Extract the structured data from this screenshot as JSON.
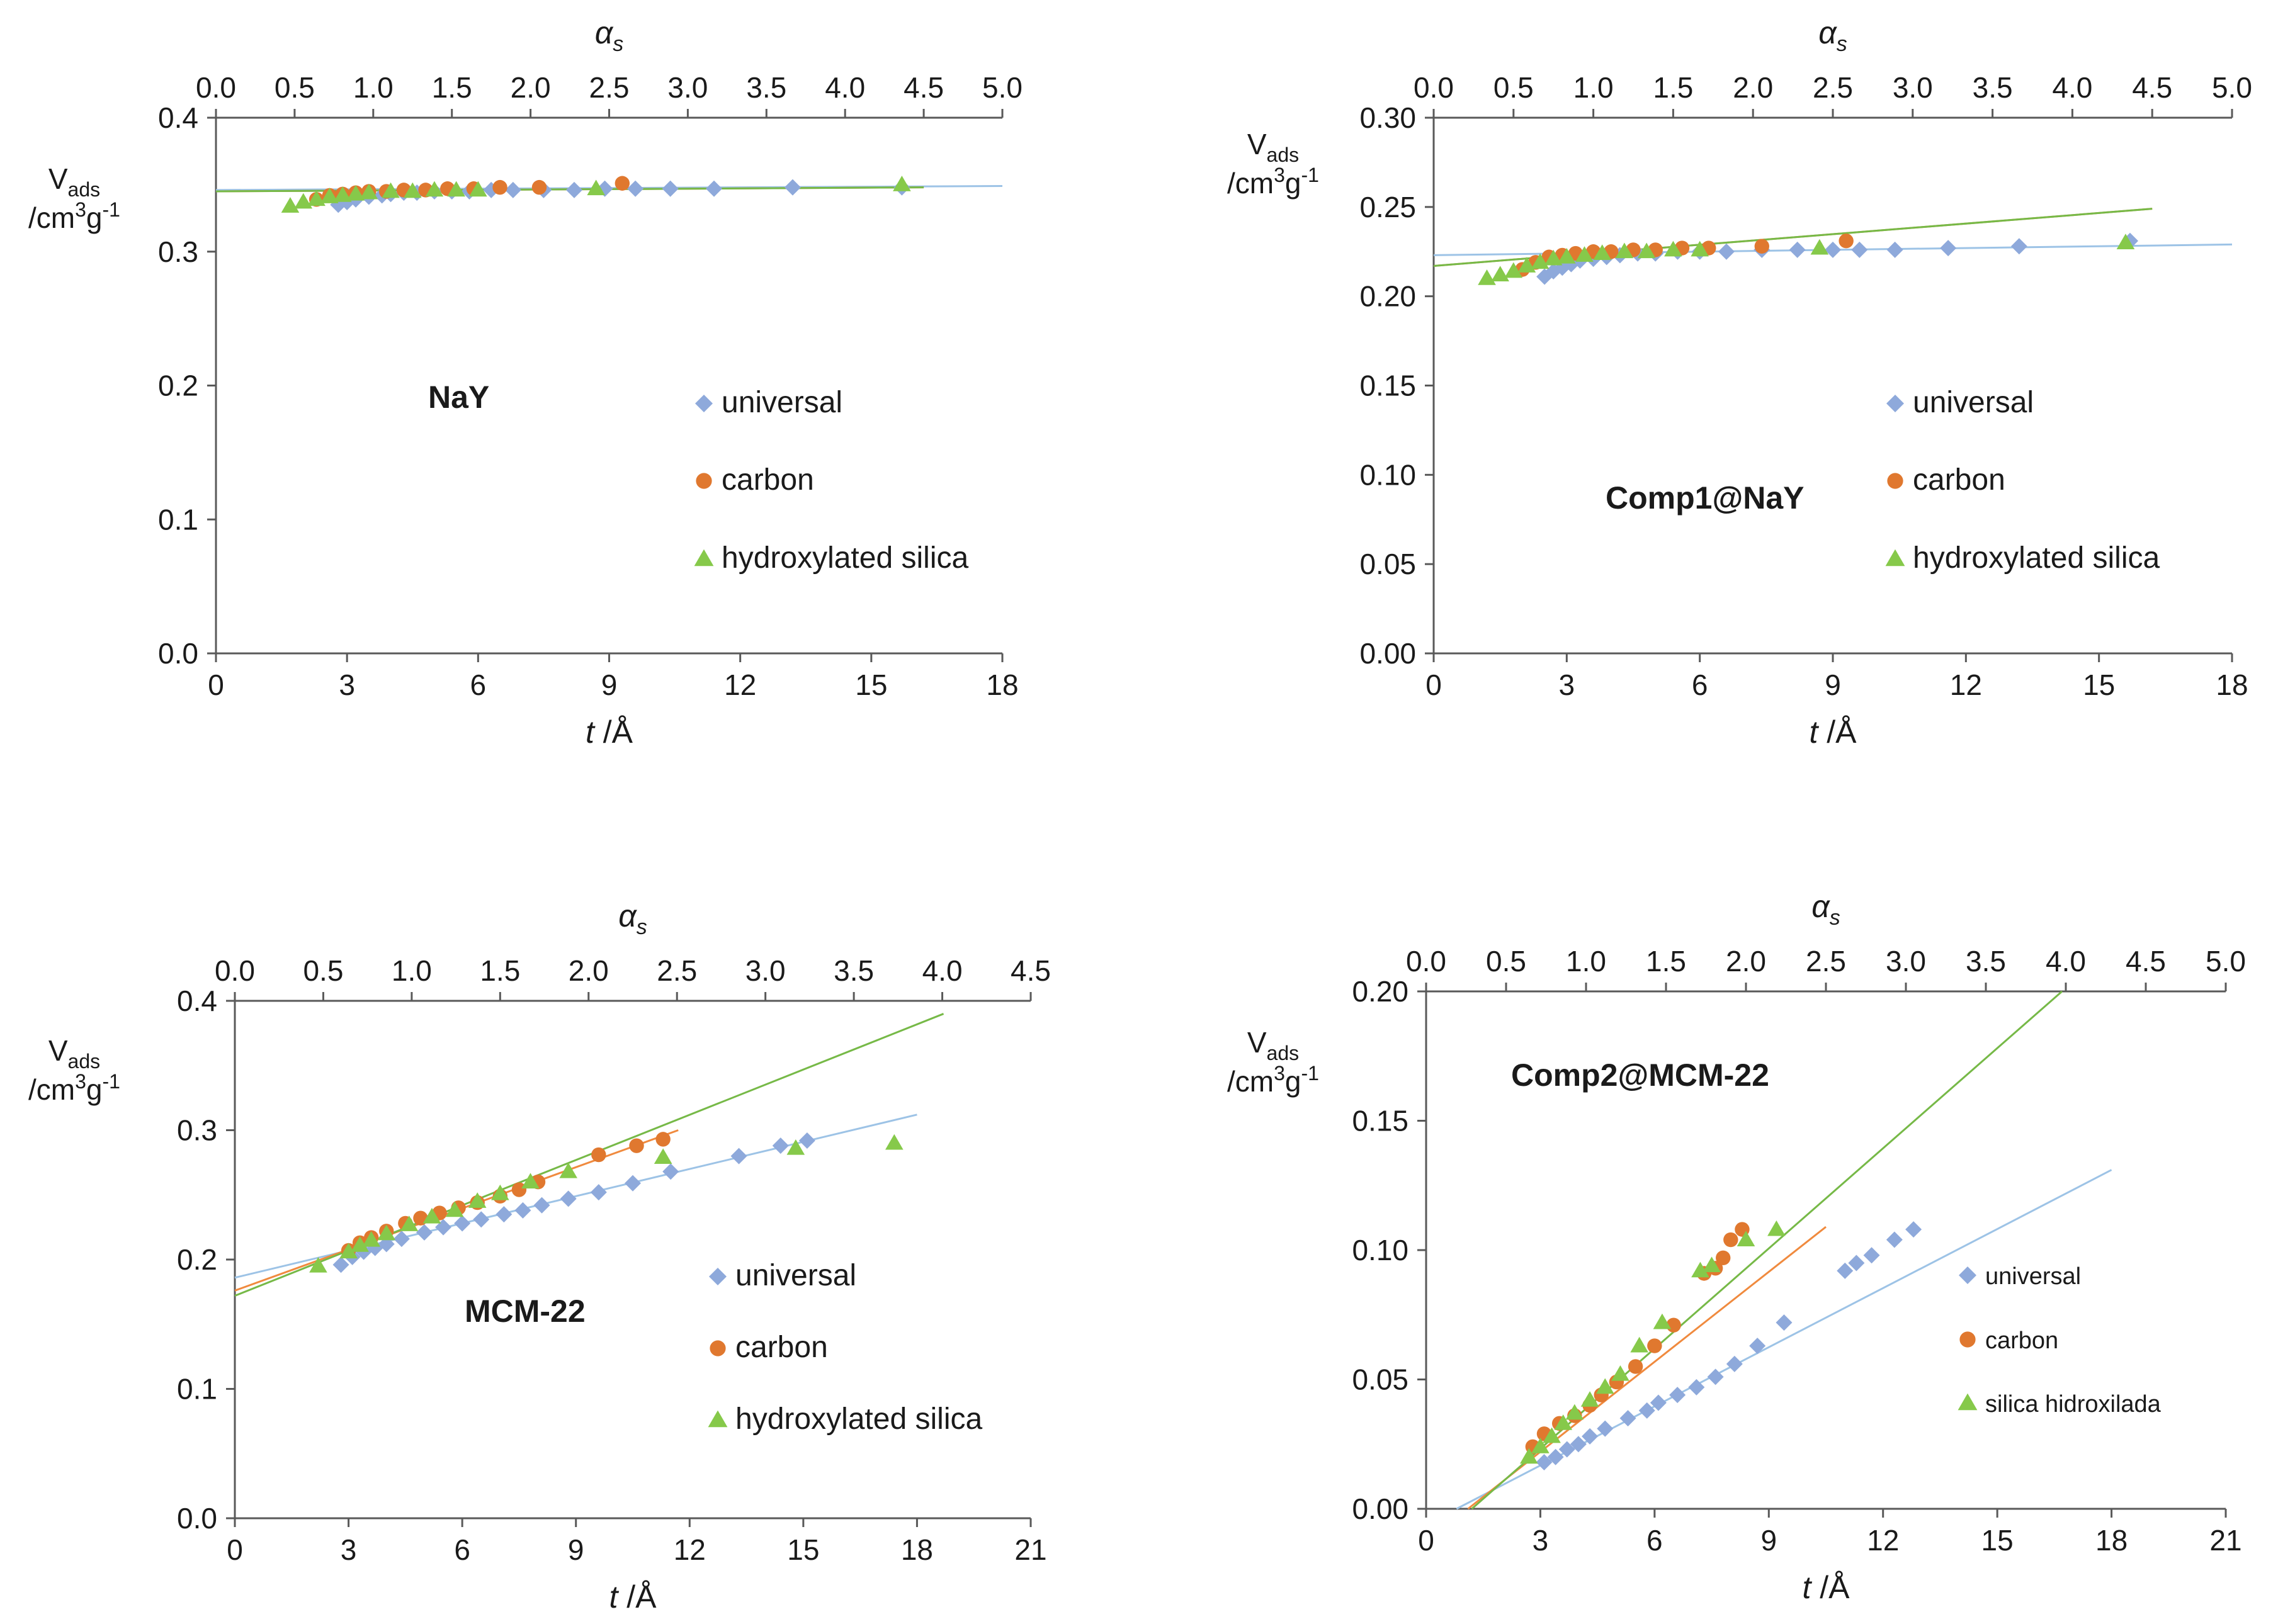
{
  "colors": {
    "universal": "#8ea9db",
    "carbon": "#e0782f",
    "silica": "#86c94a",
    "universal_line": "#9dc3e6",
    "carbon_line": "#f08a3e",
    "silica_line": "#76b947",
    "axis": "#595959"
  },
  "chart_data": [
    {
      "type": "scatter",
      "sample_label": "NaY",
      "ylabel": "V",
      "ylabel_sub": "ads",
      "ylabel_unit": "/cm",
      "ylabel_unit_sup1": "3",
      "ylabel_unit_mid": "g",
      "ylabel_unit_sup2": "-1",
      "xlabel": "t",
      "xlabel_unit": " /Å",
      "x2label": "α",
      "x2label_sub": "s",
      "xlim": [
        0,
        18
      ],
      "xticks": [
        "0",
        "3",
        "6",
        "9",
        "12",
        "15",
        "18"
      ],
      "ylim": [
        0,
        0.4
      ],
      "yticks": [
        "0.0",
        "0.1",
        "0.2",
        "0.3",
        "0.4"
      ],
      "x2lim": [
        0,
        5
      ],
      "x2ticks": [
        "0.0",
        "0.5",
        "1.0",
        "1.5",
        "2.0",
        "2.5",
        "3.0",
        "3.5",
        "4.0",
        "4.5",
        "5.0"
      ],
      "legend": [
        "universal",
        "carbon",
        "hydroxylated silica"
      ],
      "series": [
        {
          "name": "universal",
          "marker": "diamond",
          "x": [
            2.8,
            3.0,
            3.2,
            3.5,
            3.8,
            4.0,
            4.3,
            4.6,
            5.0,
            5.4,
            5.8,
            6.3,
            6.8,
            7.5,
            8.2,
            8.9,
            9.6,
            10.4,
            11.4,
            13.2,
            15.7
          ],
          "y": [
            0.335,
            0.337,
            0.339,
            0.341,
            0.342,
            0.343,
            0.344,
            0.344,
            0.345,
            0.345,
            0.345,
            0.346,
            0.346,
            0.346,
            0.346,
            0.347,
            0.347,
            0.347,
            0.347,
            0.348,
            0.348
          ]
        },
        {
          "name": "carbon",
          "marker": "circle",
          "x": [
            2.3,
            2.6,
            2.9,
            3.2,
            3.5,
            3.9,
            4.3,
            4.8,
            5.3,
            5.9,
            6.5,
            7.4,
            9.3
          ],
          "y": [
            0.339,
            0.342,
            0.343,
            0.344,
            0.345,
            0.345,
            0.346,
            0.346,
            0.347,
            0.347,
            0.348,
            0.348,
            0.351
          ]
        },
        {
          "name": "hydroxylated silica",
          "marker": "triangle",
          "x": [
            1.7,
            2.0,
            2.3,
            2.6,
            2.9,
            3.2,
            3.5,
            4.0,
            4.5,
            5.0,
            5.5,
            6.0,
            8.7,
            15.7
          ],
          "y": [
            0.334,
            0.337,
            0.339,
            0.341,
            0.342,
            0.343,
            0.344,
            0.345,
            0.345,
            0.346,
            0.346,
            0.346,
            0.347,
            0.35
          ]
        }
      ],
      "lines": [
        {
          "name": "universal",
          "x": [
            0,
            18
          ],
          "y": [
            0.346,
            0.349
          ]
        },
        {
          "name": "carbon",
          "x": [
            0,
            16.2
          ],
          "y": [
            0.345,
            0.348
          ]
        },
        {
          "name": "hydroxylated silica",
          "x": [
            0,
            16.2
          ],
          "y": [
            0.345,
            0.348
          ]
        }
      ]
    },
    {
      "type": "scatter",
      "sample_label": "Comp1@NaY",
      "ylabel": "V",
      "ylabel_sub": "ads",
      "ylabel_unit": "/cm",
      "ylabel_unit_sup1": "3",
      "ylabel_unit_mid": "g",
      "ylabel_unit_sup2": "-1",
      "xlabel": "t",
      "xlabel_unit": " /Å",
      "x2label": "α",
      "x2label_sub": "s",
      "xlim": [
        0,
        18
      ],
      "xticks": [
        "0",
        "3",
        "6",
        "9",
        "12",
        "15",
        "18"
      ],
      "ylim": [
        0,
        0.3
      ],
      "yticks": [
        "0.00",
        "0.05",
        "0.10",
        "0.15",
        "0.20",
        "0.25",
        "0.30"
      ],
      "x2lim": [
        0,
        5
      ],
      "x2ticks": [
        "0.0",
        "0.5",
        "1.0",
        "1.5",
        "2.0",
        "2.5",
        "3.0",
        "3.5",
        "4.0",
        "4.5",
        "5.0"
      ],
      "legend": [
        "universal",
        "carbon",
        "hydroxylated silica"
      ],
      "series": [
        {
          "name": "universal",
          "marker": "diamond",
          "x": [
            2.5,
            2.7,
            2.9,
            3.1,
            3.3,
            3.6,
            3.9,
            4.2,
            4.6,
            5.0,
            5.5,
            6.0,
            6.6,
            7.4,
            8.2,
            9.0,
            9.6,
            10.4,
            11.6,
            13.2,
            15.7
          ],
          "y": [
            0.211,
            0.214,
            0.216,
            0.218,
            0.22,
            0.221,
            0.222,
            0.223,
            0.224,
            0.224,
            0.225,
            0.225,
            0.225,
            0.226,
            0.226,
            0.226,
            0.226,
            0.226,
            0.227,
            0.228,
            0.231
          ]
        },
        {
          "name": "carbon",
          "marker": "circle",
          "x": [
            2.0,
            2.3,
            2.6,
            2.9,
            3.2,
            3.6,
            4.0,
            4.5,
            5.0,
            5.6,
            6.2,
            7.4,
            9.3
          ],
          "y": [
            0.215,
            0.219,
            0.222,
            0.223,
            0.224,
            0.225,
            0.225,
            0.226,
            0.226,
            0.227,
            0.227,
            0.228,
            0.231
          ]
        },
        {
          "name": "hydroxylated silica",
          "marker": "triangle",
          "x": [
            1.2,
            1.5,
            1.8,
            2.1,
            2.4,
            2.7,
            3.0,
            3.4,
            3.8,
            4.3,
            4.8,
            5.4,
            6.0,
            8.7,
            15.6
          ],
          "y": [
            0.21,
            0.212,
            0.214,
            0.217,
            0.219,
            0.221,
            0.222,
            0.223,
            0.224,
            0.225,
            0.225,
            0.226,
            0.226,
            0.227,
            0.23
          ]
        }
      ],
      "lines": [
        {
          "name": "universal",
          "x": [
            0,
            18
          ],
          "y": [
            0.223,
            0.229
          ]
        },
        {
          "name": "carbon",
          "x": [
            0,
            16.2
          ],
          "y": [
            0.217,
            0.249
          ]
        },
        {
          "name": "hydroxylated silica",
          "x": [
            0,
            16.2
          ],
          "y": [
            0.217,
            0.249
          ]
        }
      ]
    },
    {
      "type": "scatter",
      "sample_label": "MCM-22",
      "ylabel": "V",
      "ylabel_sub": "ads",
      "ylabel_unit": "/cm",
      "ylabel_unit_sup1": "3",
      "ylabel_unit_mid": "g",
      "ylabel_unit_sup2": "-1",
      "xlabel": "t",
      "xlabel_unit": " /Å",
      "x2label": "α",
      "x2label_sub": "s",
      "xlim": [
        0,
        21
      ],
      "xticks": [
        "0",
        "3",
        "6",
        "9",
        "12",
        "15",
        "18",
        "21"
      ],
      "ylim": [
        0,
        0.4
      ],
      "yticks": [
        "0.0",
        "0.1",
        "0.2",
        "0.3",
        "0.4"
      ],
      "x2lim": [
        0,
        4.5
      ],
      "x2ticks": [
        "0.0",
        "0.5",
        "1.0",
        "1.5",
        "2.0",
        "2.5",
        "3.0",
        "3.5",
        "4.0",
        "4.5"
      ],
      "legend": [
        "universal",
        "carbon",
        "hydroxylated silica"
      ],
      "series": [
        {
          "name": "universal",
          "marker": "diamond",
          "x": [
            2.8,
            3.1,
            3.4,
            3.7,
            4.0,
            4.4,
            5.0,
            5.5,
            6.0,
            6.5,
            7.1,
            7.6,
            8.1,
            8.8,
            9.6,
            10.5,
            11.5,
            13.3,
            14.4,
            15.1
          ],
          "y": [
            0.196,
            0.202,
            0.206,
            0.209,
            0.212,
            0.216,
            0.221,
            0.225,
            0.228,
            0.231,
            0.235,
            0.238,
            0.242,
            0.247,
            0.252,
            0.259,
            0.268,
            0.28,
            0.288,
            0.292
          ]
        },
        {
          "name": "carbon",
          "marker": "circle",
          "x": [
            3.0,
            3.3,
            3.6,
            4.0,
            4.5,
            4.9,
            5.4,
            5.9,
            6.4,
            7.0,
            7.5,
            8.0,
            9.6,
            10.6,
            11.3
          ],
          "y": [
            0.207,
            0.213,
            0.217,
            0.222,
            0.228,
            0.232,
            0.236,
            0.24,
            0.244,
            0.249,
            0.254,
            0.26,
            0.281,
            0.288,
            0.293
          ]
        },
        {
          "name": "hydroxylated silica",
          "marker": "triangle",
          "x": [
            2.2,
            3.0,
            3.3,
            3.6,
            4.0,
            4.6,
            5.2,
            5.8,
            6.4,
            7.0,
            7.8,
            8.8,
            11.3,
            14.8,
            17.4
          ],
          "y": [
            0.195,
            0.206,
            0.211,
            0.215,
            0.22,
            0.227,
            0.233,
            0.238,
            0.245,
            0.251,
            0.26,
            0.268,
            0.279,
            0.286,
            0.29
          ]
        }
      ],
      "lines": [
        {
          "name": "universal",
          "x": [
            0,
            18
          ],
          "y": [
            0.186,
            0.312
          ]
        },
        {
          "name": "carbon",
          "x": [
            0,
            11.7
          ],
          "y": [
            0.176,
            0.3
          ]
        },
        {
          "name": "hydroxylated silica",
          "x": [
            0,
            18.7
          ],
          "y": [
            0.172,
            0.39
          ]
        }
      ]
    },
    {
      "type": "scatter",
      "sample_label": "Comp2@MCM-22",
      "ylabel": "V",
      "ylabel_sub": "ads",
      "ylabel_unit": "/cm",
      "ylabel_unit_sup1": "3",
      "ylabel_unit_mid": "g",
      "ylabel_unit_sup2": "-1",
      "xlabel": "t",
      "xlabel_unit": " /Å",
      "x2label": "α",
      "x2label_sub": "s",
      "xlim": [
        0,
        21
      ],
      "xticks": [
        "0",
        "3",
        "6",
        "9",
        "12",
        "15",
        "18",
        "21"
      ],
      "ylim": [
        0,
        0.2
      ],
      "yticks": [
        "0.00",
        "0.05",
        "0.10",
        "0.15",
        "0.20"
      ],
      "x2lim": [
        0,
        5
      ],
      "x2ticks": [
        "0.0",
        "0.5",
        "1.0",
        "1.5",
        "2.0",
        "2.5",
        "3.0",
        "3.5",
        "4.0",
        "4.5",
        "5.0"
      ],
      "legend": [
        "universal",
        "carbon",
        "silica hidroxilada"
      ],
      "series": [
        {
          "name": "universal",
          "marker": "diamond",
          "x": [
            3.1,
            3.4,
            3.7,
            4.0,
            4.3,
            4.7,
            5.3,
            5.8,
            6.1,
            6.6,
            7.1,
            7.6,
            8.1,
            8.7,
            9.4,
            11.0,
            11.3,
            11.7,
            12.3,
            12.8
          ],
          "y": [
            0.018,
            0.02,
            0.023,
            0.025,
            0.028,
            0.031,
            0.035,
            0.038,
            0.041,
            0.044,
            0.047,
            0.051,
            0.056,
            0.063,
            0.072,
            0.092,
            0.095,
            0.098,
            0.104,
            0.108
          ]
        },
        {
          "name": "carbon",
          "marker": "circle",
          "x": [
            2.8,
            3.1,
            3.5,
            3.9,
            4.3,
            4.6,
            5.0,
            5.5,
            6.0,
            6.5,
            7.3,
            7.6,
            7.8,
            8.0,
            8.3
          ],
          "y": [
            0.024,
            0.029,
            0.033,
            0.036,
            0.04,
            0.044,
            0.049,
            0.055,
            0.063,
            0.071,
            0.091,
            0.093,
            0.097,
            0.104,
            0.108
          ]
        },
        {
          "name": "silica hidroxilada",
          "marker": "triangle",
          "x": [
            2.7,
            3.0,
            3.3,
            3.6,
            3.9,
            4.3,
            4.7,
            5.1,
            5.6,
            6.2,
            7.2,
            7.5,
            8.4,
            9.2
          ],
          "y": [
            0.02,
            0.024,
            0.028,
            0.033,
            0.037,
            0.042,
            0.047,
            0.052,
            0.063,
            0.072,
            0.092,
            0.094,
            0.104,
            0.108
          ]
        }
      ],
      "lines": [
        {
          "name": "universal",
          "x": [
            0.8,
            18
          ],
          "y": [
            0,
            0.131
          ]
        },
        {
          "name": "carbon",
          "x": [
            1.1,
            10.5
          ],
          "y": [
            0,
            0.109
          ]
        },
        {
          "name": "silica hidroxilada",
          "x": [
            1.2,
            16.7
          ],
          "y": [
            0,
            0.2
          ]
        }
      ]
    }
  ]
}
